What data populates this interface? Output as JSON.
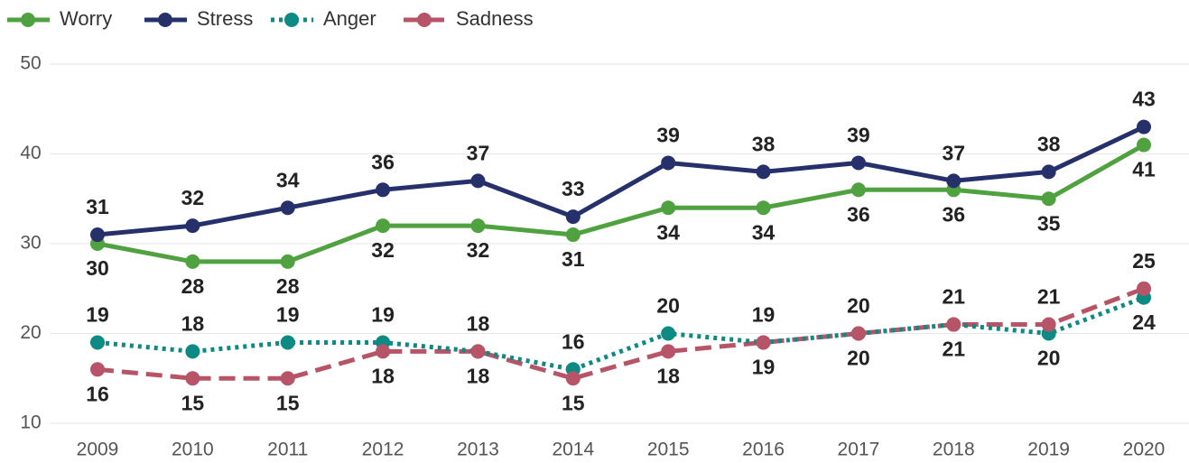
{
  "chart_data": {
    "type": "line",
    "x": [
      "2009",
      "2010",
      "2011",
      "2012",
      "2013",
      "2014",
      "2015",
      "2016",
      "2017",
      "2018",
      "2019",
      "2020"
    ],
    "series": [
      {
        "name": "Worry",
        "color": "#4fa23f",
        "dash": "solid",
        "values": [
          30,
          28,
          28,
          32,
          32,
          31,
          34,
          34,
          36,
          36,
          35,
          41
        ]
      },
      {
        "name": "Stress",
        "color": "#26306a",
        "dash": "solid",
        "values": [
          31,
          32,
          34,
          36,
          37,
          33,
          39,
          38,
          39,
          37,
          38,
          43
        ]
      },
      {
        "name": "Anger",
        "color": "#0e8a84",
        "dash": "dotted",
        "values": [
          19,
          18,
          19,
          19,
          18,
          16,
          20,
          19,
          20,
          21,
          20,
          24
        ]
      },
      {
        "name": "Sadness",
        "color": "#b85468",
        "dash": "dashed",
        "values": [
          16,
          15,
          15,
          18,
          18,
          15,
          18,
          19,
          20,
          21,
          21,
          25
        ]
      }
    ],
    "ylim": [
      10,
      50
    ],
    "yticks": [
      10,
      20,
      30,
      40,
      50
    ],
    "grid": true,
    "legend": "top-left"
  }
}
